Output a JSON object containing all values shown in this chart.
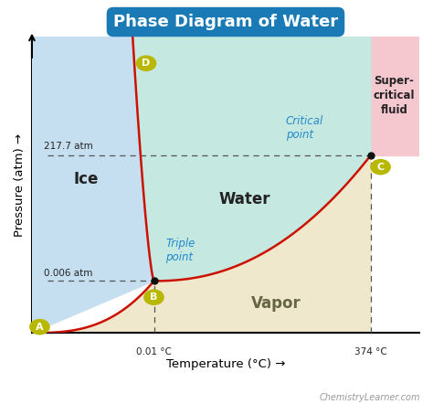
{
  "title": "Phase Diagram of Water",
  "title_bg": "#1a7ab5",
  "title_color": "#ffffff",
  "xlabel": "Temperature (°C) →",
  "ylabel": "Pressure (atm) →",
  "region_ice_color": "#c5dff0",
  "region_water_color": "#c5e8e0",
  "region_vapor_color": "#f0e8cc",
  "region_supercritical_color": "#f5c8d0",
  "label_ice": "Ice",
  "label_water": "Water",
  "label_vapor": "Vapor",
  "label_supercritical": "Super-\ncritical\nfluid",
  "label_triple": "Triple\npoint",
  "label_critical": "Critical\npoint",
  "triple_point_label": "B",
  "critical_point_label": "C",
  "point_A_label": "A",
  "point_D_label": "D",
  "annotation_217": "217.7 atm",
  "annotation_0006": "0.006 atm",
  "annotation_001": "0.01 °C",
  "annotation_374": "374 °C",
  "watermark": "ChemistryLearner.com",
  "curve_color": "#cc1100",
  "dashed_color": "#555555",
  "point_color": "#111111",
  "circle_color": "#b8b800",
  "label_color_ice": "#222222",
  "label_color_water": "#222222",
  "label_color_vapor": "#666644",
  "label_color_critical": "#2288cc",
  "label_color_triple": "#2288cc",
  "label_color_supercritical": "#222222",
  "t_B": 0.315,
  "p_B": 0.175,
  "t_C": 0.875,
  "p_C": 0.6,
  "t_D": 0.295,
  "p_D": 0.91
}
